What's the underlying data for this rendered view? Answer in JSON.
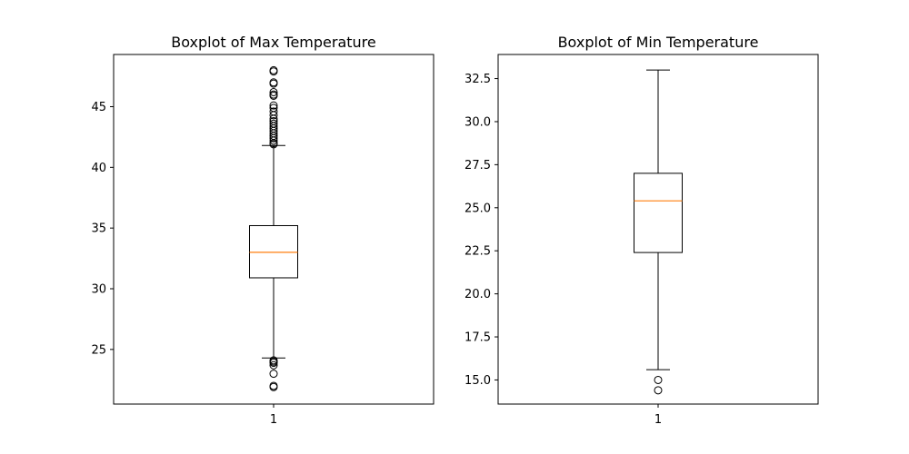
{
  "chart_data": [
    {
      "type": "boxplot",
      "title": "Boxplot of Max Temperature",
      "xlabel": "",
      "ylabel": "",
      "categories": [
        "1"
      ],
      "ylim": [
        20.5,
        49.3
      ],
      "yticks": [
        25,
        30,
        35,
        40,
        45
      ],
      "ytick_labels": [
        "25",
        "30",
        "35",
        "40",
        "45"
      ],
      "box": {
        "whisker_low": 24.3,
        "q1": 30.9,
        "median": 33.0,
        "q3": 35.2,
        "whisker_high": 41.8
      },
      "outliers": [
        48.0,
        47.9,
        47.0,
        46.9,
        46.2,
        46.0,
        45.9,
        45.1,
        44.9,
        44.6,
        44.3,
        44.0,
        43.8,
        43.6,
        43.4,
        43.2,
        43.0,
        42.8,
        42.6,
        42.4,
        42.2,
        42.0,
        41.9,
        24.1,
        24.0,
        23.9,
        23.7,
        23.0,
        22.0,
        21.9
      ],
      "grid": false,
      "colors": {
        "box": "#000000",
        "median": "#ff7f0e"
      }
    },
    {
      "type": "boxplot",
      "title": "Boxplot of Min Temperature",
      "xlabel": "",
      "ylabel": "",
      "categories": [
        "1"
      ],
      "ylim": [
        13.6,
        33.9
      ],
      "yticks": [
        15.0,
        17.5,
        20.0,
        22.5,
        25.0,
        27.5,
        30.0,
        32.5
      ],
      "ytick_labels": [
        "15.0",
        "17.5",
        "20.0",
        "22.5",
        "25.0",
        "27.5",
        "30.0",
        "32.5"
      ],
      "box": {
        "whisker_low": 15.6,
        "q1": 22.4,
        "median": 25.4,
        "q3": 27.0,
        "whisker_high": 33.0
      },
      "outliers": [
        15.0,
        14.4
      ],
      "grid": false,
      "colors": {
        "box": "#000000",
        "median": "#ff7f0e"
      }
    }
  ]
}
